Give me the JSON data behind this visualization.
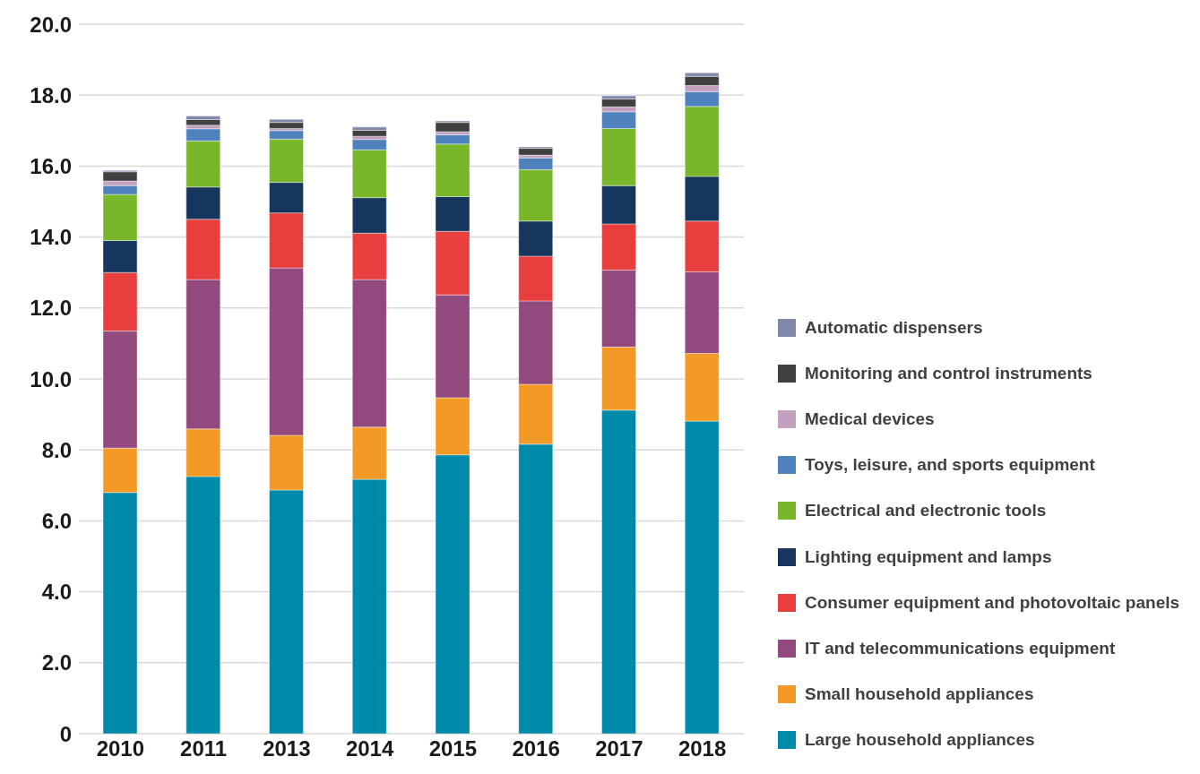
{
  "chart_data": {
    "type": "bar",
    "stacked": true,
    "categories": [
      "2010",
      "2011",
      "2013",
      "2014",
      "2015",
      "2016",
      "2017",
      "2018"
    ],
    "series": [
      {
        "name": "Large household appliances",
        "color": "#008aa9",
        "values": [
          6.8,
          7.25,
          6.87,
          7.17,
          7.86,
          8.16,
          9.12,
          8.81
        ]
      },
      {
        "name": "Small household appliances",
        "color": "#f39a26",
        "values": [
          1.25,
          1.34,
          1.54,
          1.47,
          1.61,
          1.69,
          1.78,
          1.91
        ]
      },
      {
        "name": "IT and telecommunications equipment",
        "color": "#924a7e",
        "values": [
          3.3,
          4.21,
          4.72,
          4.16,
          2.9,
          2.35,
          2.17,
          2.3
        ]
      },
      {
        "name": "Consumer equipment and photovoltaic panels",
        "color": "#e83e3e",
        "values": [
          1.65,
          1.7,
          1.55,
          1.31,
          1.79,
          1.26,
          1.3,
          1.43
        ]
      },
      {
        "name": "Lighting equipment and lamps",
        "color": "#17365d",
        "values": [
          0.9,
          0.91,
          0.86,
          1.0,
          0.98,
          0.99,
          1.08,
          1.26
        ]
      },
      {
        "name": "Electrical and electronic tools",
        "color": "#78b72a",
        "values": [
          1.3,
          1.3,
          1.22,
          1.35,
          1.48,
          1.45,
          1.61,
          1.97
        ]
      },
      {
        "name": "Toys, leisure, and sports equipment",
        "color": "#4f81bd",
        "values": [
          0.25,
          0.34,
          0.24,
          0.29,
          0.26,
          0.33,
          0.47,
          0.42
        ]
      },
      {
        "name": "Medical devices",
        "color": "#c4a0c0",
        "values": [
          0.13,
          0.1,
          0.06,
          0.09,
          0.09,
          0.08,
          0.14,
          0.17
        ]
      },
      {
        "name": "Monitoring and control instruments",
        "color": "#404040",
        "values": [
          0.26,
          0.16,
          0.17,
          0.17,
          0.26,
          0.19,
          0.22,
          0.26
        ]
      },
      {
        "name": "Automatic dispensers",
        "color": "#8088a8",
        "values": [
          0.04,
          0.1,
          0.09,
          0.09,
          0.04,
          0.04,
          0.09,
          0.1
        ]
      }
    ],
    "ylim": [
      0,
      20
    ],
    "yticks": [
      0,
      {
        "value": 2,
        "label": "2.0"
      },
      {
        "value": 4,
        "label": "4.0"
      },
      {
        "value": 6,
        "label": "6.0"
      },
      {
        "value": 8,
        "label": "8.0"
      },
      {
        "value": 10,
        "label": "10.0"
      },
      {
        "value": 12,
        "label": "12.0"
      },
      {
        "value": 14,
        "label": "14.0"
      },
      {
        "value": 16,
        "label": "16.0"
      },
      {
        "value": 18,
        "label": "18.0"
      },
      {
        "value": 20,
        "label": "20.0"
      }
    ],
    "grid": "y",
    "legend": "right"
  }
}
